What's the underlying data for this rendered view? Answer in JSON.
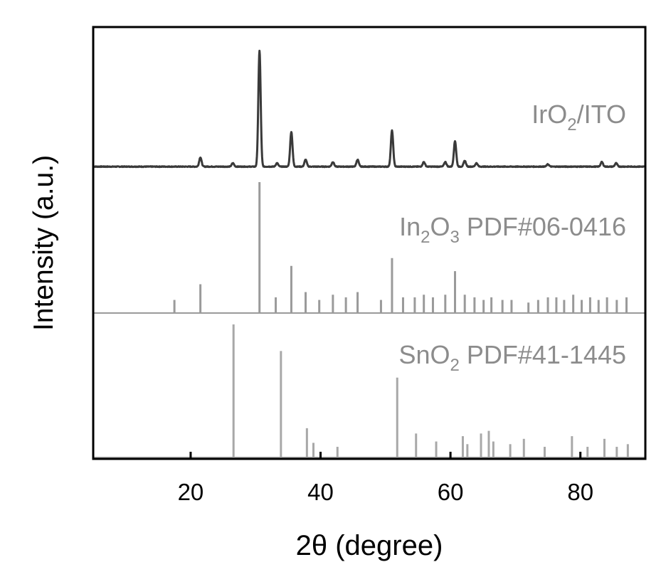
{
  "chart_data": {
    "type": "line",
    "xlabel": "2θ (degree)",
    "ylabel": "Intensity (a.u.)",
    "xlim": [
      5,
      90
    ],
    "xticks": [
      20,
      40,
      60,
      80
    ],
    "grid": false,
    "colors": {
      "measured": "#3a3a3a",
      "in2o3": "#9a9a9a",
      "sno2": "#a8a8a8",
      "text": "#8c8c8c",
      "axis": "#000000"
    },
    "series": [
      {
        "name": "IrO2/ITO",
        "name_parts": [
          "IrO",
          "2",
          "/ITO"
        ],
        "kind": "pattern",
        "peaks": [
          {
            "x": 21.5,
            "h": 0.08
          },
          {
            "x": 26.5,
            "h": 0.03
          },
          {
            "x": 30.6,
            "h": 1.0
          },
          {
            "x": 33.3,
            "h": 0.03
          },
          {
            "x": 35.5,
            "h": 0.3
          },
          {
            "x": 37.7,
            "h": 0.06
          },
          {
            "x": 41.9,
            "h": 0.04
          },
          {
            "x": 45.7,
            "h": 0.06
          },
          {
            "x": 51.0,
            "h": 0.31
          },
          {
            "x": 55.9,
            "h": 0.04
          },
          {
            "x": 59.2,
            "h": 0.04
          },
          {
            "x": 60.7,
            "h": 0.22
          },
          {
            "x": 62.2,
            "h": 0.05
          },
          {
            "x": 64.0,
            "h": 0.03
          },
          {
            "x": 75.0,
            "h": 0.02
          },
          {
            "x": 83.3,
            "h": 0.04
          },
          {
            "x": 85.5,
            "h": 0.03
          }
        ]
      },
      {
        "name": "In2O3 PDF#06-0416",
        "name_parts": [
          "In",
          "2",
          "O",
          "3",
          " PDF#06-0416"
        ],
        "kind": "sticks",
        "peaks": [
          {
            "x": 17.5,
            "h": 0.1
          },
          {
            "x": 21.5,
            "h": 0.22
          },
          {
            "x": 30.6,
            "h": 1.0
          },
          {
            "x": 33.1,
            "h": 0.12
          },
          {
            "x": 35.5,
            "h": 0.36
          },
          {
            "x": 37.7,
            "h": 0.16
          },
          {
            "x": 39.8,
            "h": 0.1
          },
          {
            "x": 41.9,
            "h": 0.14
          },
          {
            "x": 43.9,
            "h": 0.12
          },
          {
            "x": 45.7,
            "h": 0.16
          },
          {
            "x": 49.3,
            "h": 0.1
          },
          {
            "x": 51.0,
            "h": 0.42
          },
          {
            "x": 52.7,
            "h": 0.12
          },
          {
            "x": 54.5,
            "h": 0.12
          },
          {
            "x": 55.9,
            "h": 0.14
          },
          {
            "x": 57.3,
            "h": 0.12
          },
          {
            "x": 59.2,
            "h": 0.14
          },
          {
            "x": 60.7,
            "h": 0.32
          },
          {
            "x": 62.2,
            "h": 0.14
          },
          {
            "x": 63.7,
            "h": 0.12
          },
          {
            "x": 65.1,
            "h": 0.1
          },
          {
            "x": 66.3,
            "h": 0.12
          },
          {
            "x": 68.0,
            "h": 0.1
          },
          {
            "x": 69.4,
            "h": 0.1
          },
          {
            "x": 72.0,
            "h": 0.08
          },
          {
            "x": 73.5,
            "h": 0.1
          },
          {
            "x": 75.0,
            "h": 0.12
          },
          {
            "x": 76.3,
            "h": 0.12
          },
          {
            "x": 77.5,
            "h": 0.1
          },
          {
            "x": 78.9,
            "h": 0.14
          },
          {
            "x": 80.2,
            "h": 0.1
          },
          {
            "x": 81.5,
            "h": 0.12
          },
          {
            "x": 82.8,
            "h": 0.1
          },
          {
            "x": 84.1,
            "h": 0.12
          },
          {
            "x": 85.6,
            "h": 0.1
          },
          {
            "x": 87.1,
            "h": 0.12
          }
        ]
      },
      {
        "name": "SnO2 PDF#41-1445",
        "name_parts": [
          "SnO",
          "2",
          " PDF#41-1445"
        ],
        "kind": "sticks",
        "peaks": [
          {
            "x": 26.6,
            "h": 1.0
          },
          {
            "x": 33.9,
            "h": 0.8
          },
          {
            "x": 37.9,
            "h": 0.22
          },
          {
            "x": 38.9,
            "h": 0.11
          },
          {
            "x": 42.6,
            "h": 0.08
          },
          {
            "x": 51.8,
            "h": 0.6
          },
          {
            "x": 54.7,
            "h": 0.18
          },
          {
            "x": 57.8,
            "h": 0.12
          },
          {
            "x": 61.9,
            "h": 0.16
          },
          {
            "x": 62.6,
            "h": 0.1
          },
          {
            "x": 64.7,
            "h": 0.18
          },
          {
            "x": 65.9,
            "h": 0.2
          },
          {
            "x": 66.6,
            "h": 0.12
          },
          {
            "x": 69.2,
            "h": 0.1
          },
          {
            "x": 71.3,
            "h": 0.14
          },
          {
            "x": 74.5,
            "h": 0.08
          },
          {
            "x": 78.7,
            "h": 0.16
          },
          {
            "x": 81.1,
            "h": 0.08
          },
          {
            "x": 83.7,
            "h": 0.14
          },
          {
            "x": 85.6,
            "h": 0.08
          },
          {
            "x": 87.3,
            "h": 0.1
          }
        ]
      }
    ]
  }
}
